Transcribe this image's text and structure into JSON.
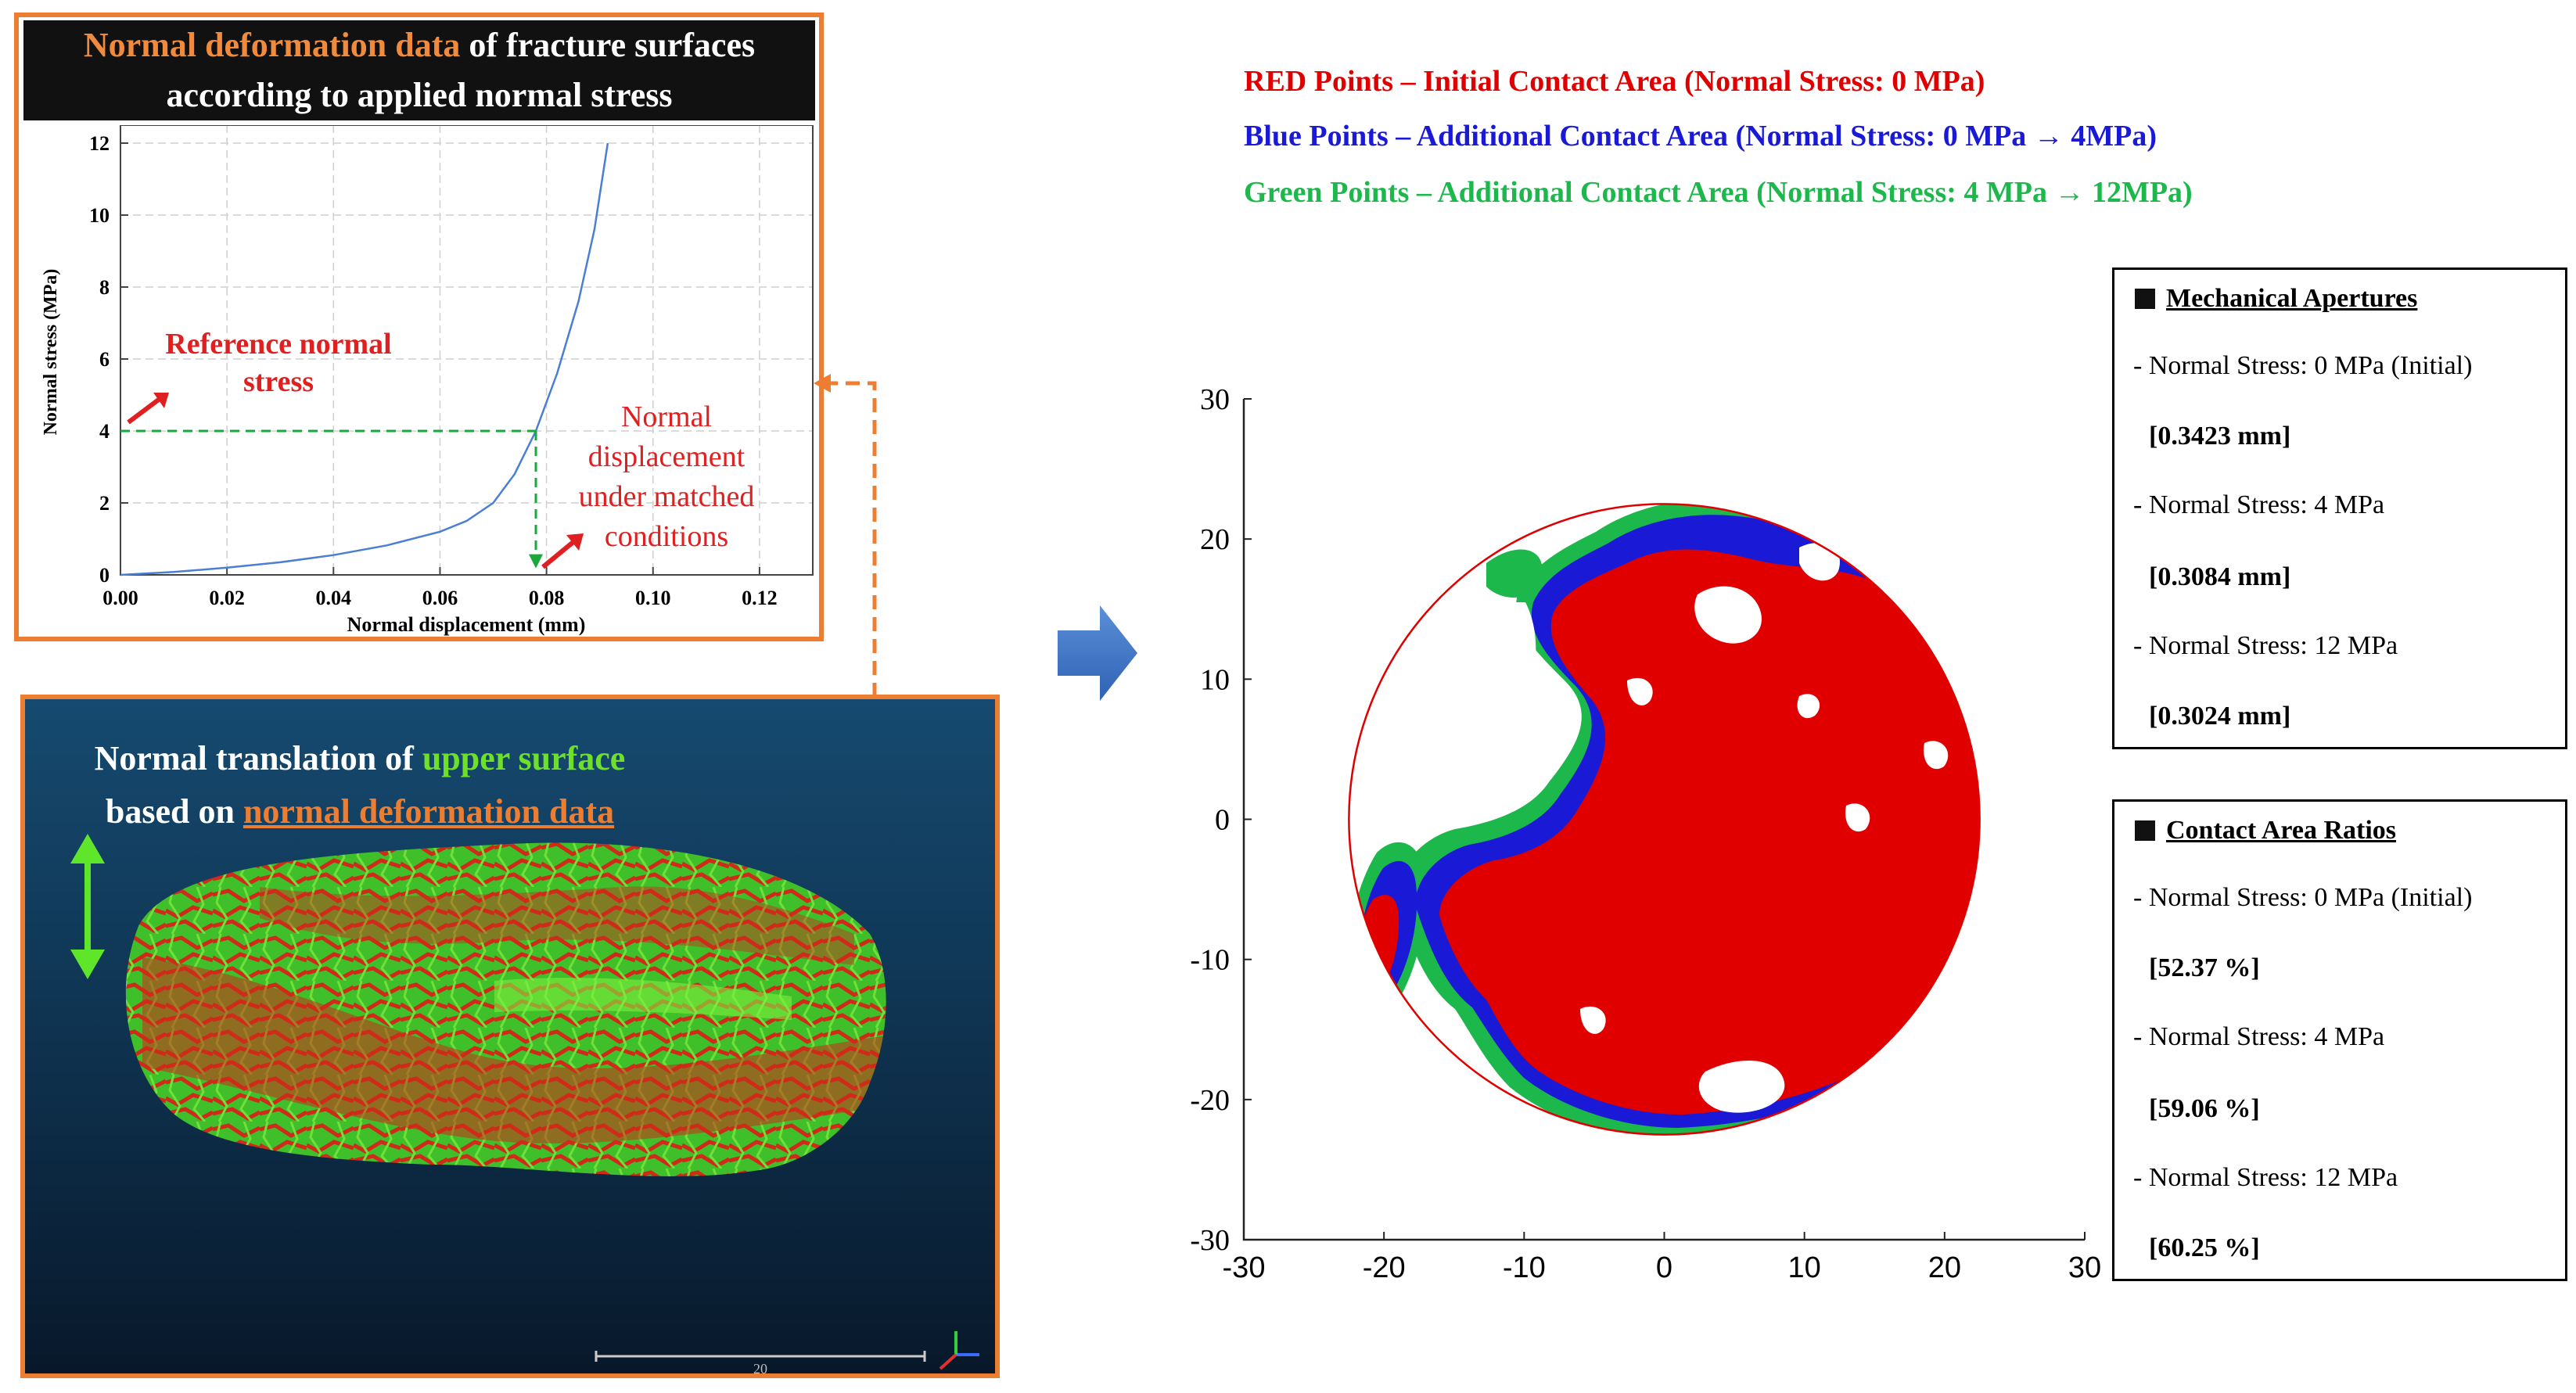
{
  "curve_panel": {
    "title_highlight": "Normal deformation data",
    "title_rest": " of fracture surfaces",
    "title_line2": "according to applied normal stress",
    "chart_data": {
      "type": "line",
      "xlabel": "Normal displacement (mm)",
      "ylabel": "Normal stress (MPa)",
      "xlim": [
        0,
        0.13
      ],
      "ylim": [
        0,
        12.5
      ],
      "x_ticks": [
        "0.00",
        "0.02",
        "0.04",
        "0.06",
        "0.08",
        "0.10",
        "0.12"
      ],
      "y_ticks": [
        "0",
        "2",
        "4",
        "6",
        "8",
        "10",
        "12"
      ],
      "grid": true,
      "series": [
        {
          "color": "#4a7fd4",
          "points": [
            [
              0,
              0
            ],
            [
              0.01,
              0.08
            ],
            [
              0.02,
              0.2
            ],
            [
              0.03,
              0.35
            ],
            [
              0.04,
              0.55
            ],
            [
              0.05,
              0.82
            ],
            [
              0.06,
              1.2
            ],
            [
              0.065,
              1.5
            ],
            [
              0.07,
              2.0
            ],
            [
              0.074,
              2.8
            ],
            [
              0.078,
              4.0
            ],
            [
              0.082,
              5.6
            ],
            [
              0.086,
              7.6
            ],
            [
              0.089,
              9.6
            ],
            [
              0.0915,
              12.0
            ]
          ]
        }
      ],
      "reference_stress": 4,
      "matched_displacement": 0.078,
      "annotations": {
        "reference": "Reference normal stress",
        "reference_l1": "Reference normal",
        "reference_l2": "stress",
        "disp_l1": "Normal",
        "disp_l2": "displacement",
        "disp_l3": "under matched",
        "disp_l4": "conditions"
      }
    }
  },
  "scan_panel": {
    "caption_l1_a": "Normal translation of ",
    "caption_l1_b": "upper surface",
    "caption_l2_a": "based on ",
    "caption_l2_b": "normal deformation data",
    "scale_bar_label": "20"
  },
  "legend": {
    "red": "RED Points – Initial Contact Area (Normal Stress: 0 MPa)",
    "blue": "Blue Points – Additional Contact Area (Normal Stress: 0 MPa → 4MPa)",
    "green": "Green Points – Additional Contact Area (Normal Stress: 4 MPa → 12MPa)",
    "colors": {
      "red": "#e00000",
      "blue": "#1a1ad6",
      "green": "#1cb84c"
    }
  },
  "contact_map": {
    "chart_data": {
      "type": "scatter",
      "xlim": [
        -30,
        30
      ],
      "ylim": [
        -30,
        30
      ],
      "x_ticks": [
        "-30",
        "-20",
        "-10",
        "0",
        "10",
        "20",
        "30"
      ],
      "y_ticks": [
        "30",
        "20",
        "10",
        "0",
        "-10",
        "-20",
        "-30"
      ],
      "circle_radius": 22.5,
      "circle_color": "#e00000"
    }
  },
  "apertures": {
    "title": "Mechanical Apertures",
    "rows": [
      {
        "label": "- Normal Stress: 0 MPa (Initial)",
        "value": "[0.3423 mm]"
      },
      {
        "label": "- Normal Stress: 4 MPa",
        "value": "[0.3084 mm]"
      },
      {
        "label": "- Normal Stress: 12 MPa",
        "value": "[0.3024 mm]"
      }
    ]
  },
  "contact_ratios": {
    "title": "Contact Area Ratios",
    "rows": [
      {
        "label": "- Normal Stress: 0 MPa (Initial)",
        "value": "[52.37 %]"
      },
      {
        "label": "- Normal Stress: 4 MPa",
        "value": "[59.06 %]"
      },
      {
        "label": "- Normal Stress: 12 MPa",
        "value": "[60.25 %]"
      }
    ]
  }
}
